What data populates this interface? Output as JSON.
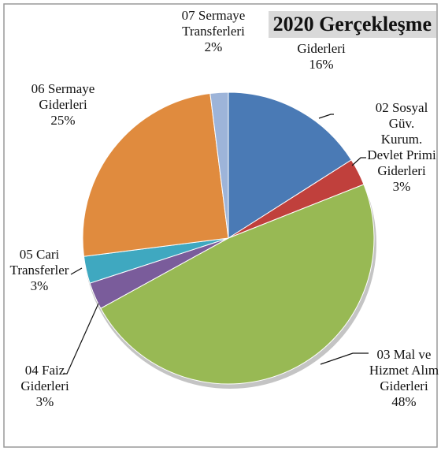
{
  "chart_data": {
    "type": "pie",
    "title": "2020 Gerçekleşme",
    "categories": [
      "01 Personel Giderleri",
      "02 Sosyal Güv. Kurum. Devlet Primi Giderleri",
      "03 Mal ve Hizmet Alım Giderleri",
      "04 Faiz Giderleri",
      "05 Cari Transferler",
      "06 Sermaye Giderleri",
      "07 Sermaye Transferleri"
    ],
    "values": [
      16,
      3,
      48,
      3,
      3,
      25,
      2
    ],
    "value_labels": [
      "16%",
      "3%",
      "48%",
      "3%",
      "3%",
      "25%",
      "2%"
    ],
    "colors": [
      "#4a7ab5",
      "#c0403c",
      "#98b954",
      "#7a5c9b",
      "#3fa8c0",
      "#e08b3e",
      "#9db4d9"
    ]
  }
}
